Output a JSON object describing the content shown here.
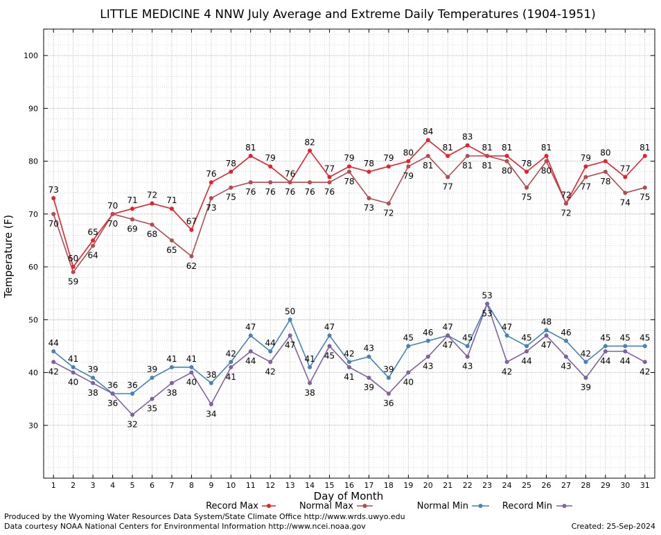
{
  "chart_data": {
    "type": "line",
    "title": "LITTLE MEDICINE 4 NNW July Average and Extreme Daily Temperatures (1904-1951)",
    "xlabel": "Day of Month",
    "ylabel": "Temperature (F)",
    "xlim": [
      0.5,
      31.5
    ],
    "ylim": [
      20,
      105
    ],
    "yticks": [
      30,
      40,
      50,
      60,
      70,
      80,
      90,
      100
    ],
    "x": [
      1,
      2,
      3,
      4,
      5,
      6,
      7,
      8,
      9,
      10,
      11,
      12,
      13,
      14,
      15,
      16,
      17,
      18,
      19,
      20,
      21,
      22,
      23,
      24,
      25,
      26,
      27,
      28,
      29,
      30,
      31
    ],
    "grid": true,
    "legend_position": "bottom",
    "series": [
      {
        "name": "Record Max",
        "color": "#e8202a",
        "values": [
          73,
          60,
          65,
          70,
          71,
          72,
          71,
          67,
          76,
          78,
          81,
          79,
          76,
          82,
          77,
          79,
          78,
          79,
          80,
          84,
          81,
          83,
          81,
          81,
          78,
          81,
          72,
          79,
          80,
          77,
          81
        ]
      },
      {
        "name": "Normal Max",
        "color": "#b54a4f",
        "values": [
          70,
          59,
          64,
          70,
          69,
          68,
          65,
          62,
          73,
          75,
          76,
          76,
          76,
          76,
          76,
          78,
          73,
          72,
          79,
          81,
          77,
          81,
          81,
          80,
          75,
          80,
          72,
          77,
          78,
          74,
          75
        ]
      },
      {
        "name": "Normal Min",
        "color": "#4682b4",
        "values": [
          44,
          41,
          39,
          36,
          36,
          39,
          41,
          41,
          38,
          42,
          47,
          44,
          50,
          41,
          47,
          42,
          43,
          39,
          45,
          46,
          47,
          45,
          53,
          47,
          45,
          48,
          46,
          42,
          45,
          45,
          45
        ]
      },
      {
        "name": "Record Min",
        "color": "#8060a0",
        "values": [
          42,
          40,
          38,
          36,
          32,
          35,
          38,
          40,
          34,
          41,
          44,
          42,
          47,
          38,
          45,
          41,
          39,
          36,
          40,
          43,
          47,
          43,
          53,
          42,
          44,
          47,
          43,
          39,
          44,
          44,
          42
        ]
      }
    ]
  },
  "footer": {
    "left_line1": "Produced by the Wyoming Water Resources Data System/State Climate Office http://www.wrds.uwyo.edu",
    "left_line2": "Data courtesy NOAA National Centers for Environmental Information http://www.ncei.noaa.gov",
    "created": "Created:  25-Sep-2024"
  }
}
